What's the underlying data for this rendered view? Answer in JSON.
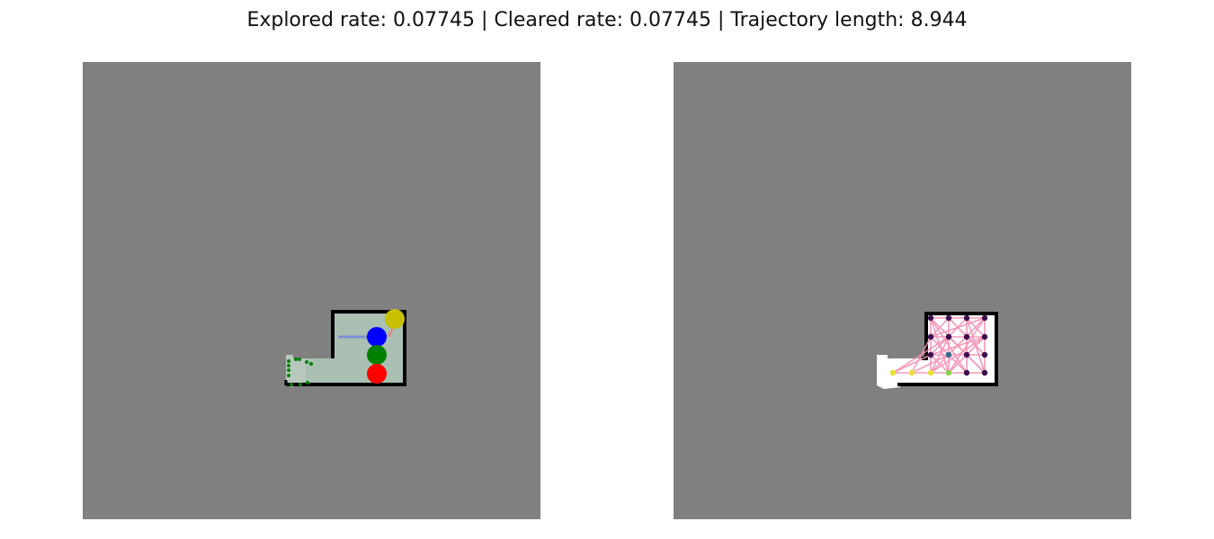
{
  "title": "Explored rate: 0.07745 | Cleared rate: 0.07745 | Trajectory length: 8.944",
  "colors": {
    "unknown": "#808080",
    "explored_left": "#a9c0b3",
    "explored_right": "#ffffff",
    "wall": "#000000",
    "agent_yellow": "#c8c000",
    "agent_blue": "#0000ff",
    "agent_green": "#008000",
    "agent_red": "#ff0000",
    "frontier": "#008000",
    "path_blue": "#7b86d8",
    "path_red": "#e08a8a",
    "graph_edge": "#f48fb1",
    "node_dark": "#3b0f4f",
    "node_teal": "#2f6f8a",
    "node_yellow": "#e8e033",
    "node_lime": "#8bd24a"
  }
}
